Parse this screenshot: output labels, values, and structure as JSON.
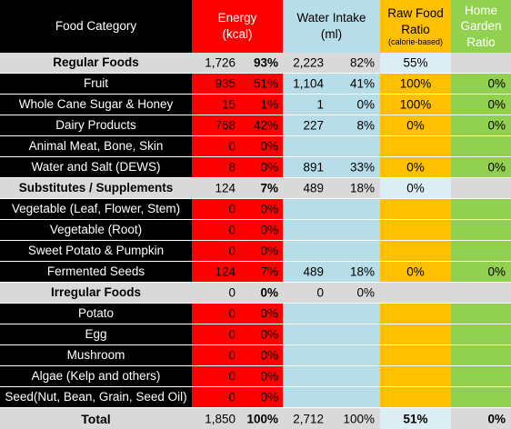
{
  "header": {
    "food_category": "Food Category",
    "energy": [
      "Energy",
      "(kcal)"
    ],
    "water": [
      "Water Intake",
      "(ml)"
    ],
    "raw": [
      "Raw Food",
      "Ratio",
      "(calorie-based)"
    ],
    "home": [
      "Home",
      "Garden",
      "Ratio"
    ]
  },
  "rows": [
    {
      "label": "Regular Foods",
      "ev": "1,726",
      "ep": "93%",
      "wv": "2,223",
      "wp": "82%",
      "raw": "55%",
      "home": ""
    },
    {
      "label": "Fruit",
      "ev": "935",
      "ep": "51%",
      "wv": "1,104",
      "wp": "41%",
      "raw": "100%",
      "home": "0%"
    },
    {
      "label": "Whole Cane Sugar & Honey",
      "ev": "15",
      "ep": "1%",
      "wv": "1",
      "wp": "0%",
      "raw": "100%",
      "home": "0%"
    },
    {
      "label": "Dairy Products",
      "ev": "768",
      "ep": "42%",
      "wv": "227",
      "wp": "8%",
      "raw": "0%",
      "home": "0%"
    },
    {
      "label": "Animal Meat, Bone, Skin",
      "ev": "0",
      "ep": "0%",
      "wv": "",
      "wp": "",
      "raw": "",
      "home": ""
    },
    {
      "label": "Water and Salt (DEWS)",
      "ev": "8",
      "ep": "0%",
      "wv": "891",
      "wp": "33%",
      "raw": "0%",
      "home": "0%"
    },
    {
      "label": "Substitutes / Supplements",
      "ev": "124",
      "ep": "7%",
      "wv": "489",
      "wp": "18%",
      "raw": "0%",
      "home": ""
    },
    {
      "label": "Vegetable (Leaf, Flower, Stem)",
      "ev": "0",
      "ep": "0%",
      "wv": "",
      "wp": "",
      "raw": "",
      "home": ""
    },
    {
      "label": "Vegetable (Root)",
      "ev": "0",
      "ep": "0%",
      "wv": "",
      "wp": "",
      "raw": "",
      "home": ""
    },
    {
      "label": "Sweet Potato & Pumpkin",
      "ev": "0",
      "ep": "0%",
      "wv": "",
      "wp": "",
      "raw": "",
      "home": ""
    },
    {
      "label": "Fermented Seeds",
      "ev": "124",
      "ep": "7%",
      "wv": "489",
      "wp": "18%",
      "raw": "0%",
      "home": "0%"
    },
    {
      "label": "Irregular Foods",
      "ev": "0",
      "ep": "0%",
      "wv": "0",
      "wp": "0%",
      "raw": "",
      "home": ""
    },
    {
      "label": "Potato",
      "ev": "0",
      "ep": "0%",
      "wv": "",
      "wp": "",
      "raw": "",
      "home": ""
    },
    {
      "label": "Egg",
      "ev": "0",
      "ep": "0%",
      "wv": "",
      "wp": "",
      "raw": "",
      "home": ""
    },
    {
      "label": "Mushroom",
      "ev": "0",
      "ep": "0%",
      "wv": "",
      "wp": "",
      "raw": "",
      "home": ""
    },
    {
      "label": "Algae (Kelp and others)",
      "ev": "0",
      "ep": "0%",
      "wv": "",
      "wp": "",
      "raw": "",
      "home": ""
    },
    {
      "label": "Seed(Nut, Bean, Grain, Seed Oil)",
      "ev": "0",
      "ep": "0%",
      "wv": "",
      "wp": "",
      "raw": "",
      "home": ""
    },
    {
      "label": "Total",
      "ev": "1,850",
      "ep": "100%",
      "wv": "2,712",
      "wp": "100%",
      "raw": "51%",
      "home": "0%"
    }
  ]
}
